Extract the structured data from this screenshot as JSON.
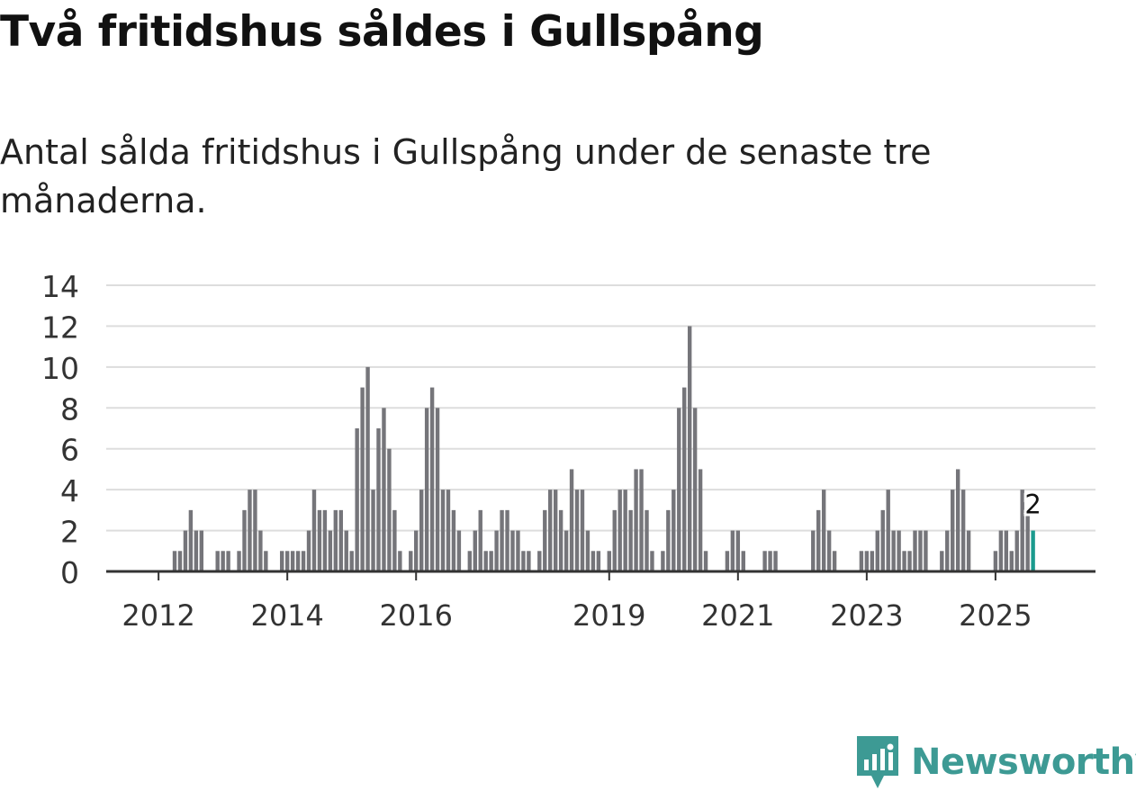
{
  "title": "Två fritidshus såldes i Gullspång",
  "subtitle": "Antal sålda fritidshus i Gullspång under de senaste tre månaderna.",
  "brand": {
    "name": "Newsworthy",
    "color": "#3d9a94",
    "icon": "newsworthy-logo-icon"
  },
  "colors": {
    "bar": "#75757a",
    "highlight": "#1a9b8e",
    "grid": "#dddddd",
    "axis": "#333333"
  },
  "chart_data": {
    "type": "bar",
    "ylim": [
      0,
      14
    ],
    "yticks": [
      0,
      2,
      4,
      6,
      8,
      10,
      12,
      14
    ],
    "xticks": [
      {
        "label": "2012",
        "x": 2012.0
      },
      {
        "label": "2014",
        "x": 2014.0
      },
      {
        "label": "2016",
        "x": 2016.0
      },
      {
        "label": "2019",
        "x": 2019.0
      },
      {
        "label": "2021",
        "x": 2021.0
      },
      {
        "label": "2023",
        "x": 2023.0
      },
      {
        "label": "2025",
        "x": 2025.0
      }
    ],
    "x_start": "2011-04",
    "values": [
      0,
      0,
      0,
      0,
      0,
      0,
      0,
      0,
      0,
      0,
      0,
      0,
      1,
      1,
      2,
      3,
      2,
      2,
      0,
      0,
      1,
      1,
      1,
      0,
      1,
      3,
      4,
      4,
      2,
      1,
      0,
      0,
      1,
      1,
      1,
      1,
      1,
      2,
      4,
      3,
      3,
      2,
      3,
      3,
      2,
      1,
      7,
      9,
      10,
      4,
      7,
      8,
      6,
      3,
      1,
      0,
      1,
      2,
      4,
      8,
      9,
      8,
      4,
      4,
      3,
      2,
      0,
      1,
      2,
      3,
      1,
      1,
      2,
      3,
      3,
      2,
      2,
      1,
      1,
      0,
      1,
      3,
      4,
      4,
      3,
      2,
      5,
      4,
      4,
      2,
      1,
      1,
      0,
      1,
      3,
      4,
      4,
      3,
      5,
      5,
      3,
      1,
      0,
      1,
      3,
      4,
      8,
      9,
      12,
      8,
      5,
      1,
      0,
      0,
      0,
      1,
      2,
      2,
      1,
      0,
      0,
      0,
      1,
      1,
      1,
      0,
      0,
      0,
      0,
      0,
      0,
      2,
      3,
      4,
      2,
      1,
      0,
      0,
      0,
      0,
      1,
      1,
      1,
      2,
      3,
      4,
      2,
      2,
      1,
      1,
      2,
      2,
      2,
      0,
      0,
      1,
      2,
      4,
      5,
      4,
      2,
      0,
      0,
      0,
      0,
      1,
      2,
      2,
      1,
      2,
      4,
      3,
      2
    ],
    "highlight_last": true,
    "last_label": "2"
  }
}
